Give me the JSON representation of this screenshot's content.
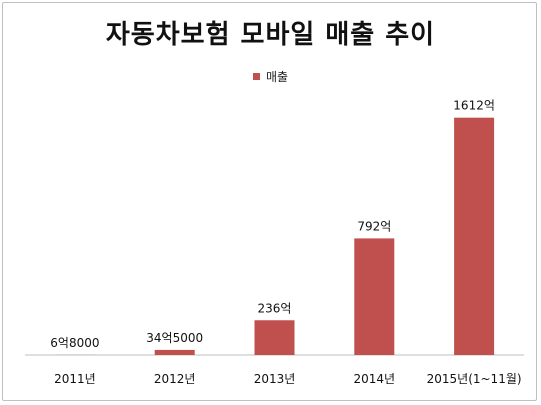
{
  "chart_data": {
    "type": "bar",
    "title": "자동차보험 모바일 매출 추이",
    "categories": [
      "2011년",
      "2012년",
      "2013년",
      "2014년",
      "2015년(1~11월)"
    ],
    "series": [
      {
        "name": "매출",
        "values": [
          0.68,
          34.5,
          236,
          792,
          1612
        ],
        "data_labels": [
          "6억8000",
          "34억5000",
          "236억",
          "792억",
          "1612억"
        ],
        "color": "#c0504d"
      }
    ],
    "unit": "억",
    "ylim": [
      0,
      1800
    ],
    "grid": false,
    "legend_position": "top"
  }
}
